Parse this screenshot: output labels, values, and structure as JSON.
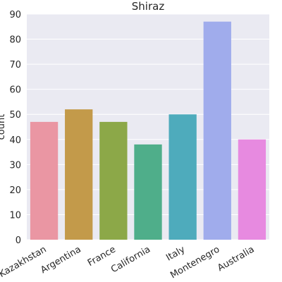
{
  "chart_data": {
    "type": "bar",
    "title": "Shiraz",
    "xlabel": "",
    "ylabel": "count",
    "categories": [
      "Kazakhstan",
      "Argentina",
      "France",
      "California",
      "Italy",
      "Montenegro",
      "Australia"
    ],
    "values": [
      47,
      52,
      47,
      38,
      50,
      87,
      40
    ],
    "colors": [
      "#ea96a3",
      "#c39a4a",
      "#8ca848",
      "#4fae8a",
      "#4eabbc",
      "#a0acec",
      "#e78ae0"
    ],
    "yticks": [
      0,
      10,
      20,
      30,
      40,
      50,
      60,
      70,
      80,
      90
    ],
    "ylim": [
      0,
      90
    ],
    "grid": true,
    "background": "#eaeaf2"
  }
}
